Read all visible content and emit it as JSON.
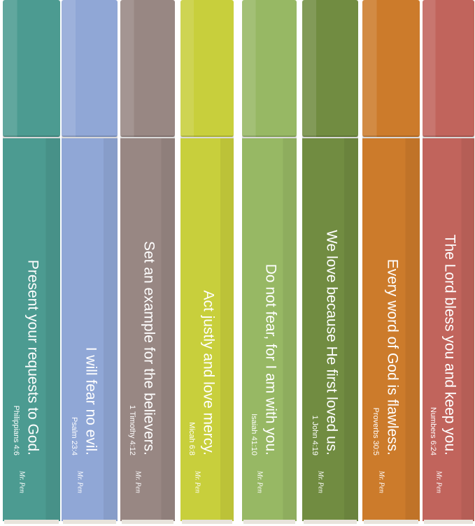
{
  "pens": [
    {
      "verse": "Present your requests to God.",
      "reference": "Philippians 4:6",
      "brand": "Mr. Pen"
    },
    {
      "verse": "I will fear no evil.",
      "reference": "Psalm 23:4",
      "brand": "Mr. Pen"
    },
    {
      "verse": "Set an example for the believers.",
      "reference": "1 Timothy 4:12",
      "brand": "Mr. Pen"
    },
    {
      "verse": "Act justly and love mercy.",
      "reference": "Micah 6:8",
      "brand": "Mr. Pen"
    },
    {
      "verse": "Do not fear, for I am with you.",
      "reference": "Isaiah 41:10",
      "brand": "Mr. Pen"
    },
    {
      "verse": "We love because He first loved us.",
      "reference": "1 John 4:19",
      "brand": "Mr. Pen"
    },
    {
      "verse": "Every word of God is flawless.",
      "reference": "Proverbs 30:5",
      "brand": "Mr. Pen"
    },
    {
      "verse": "The Lord bless you and keep you.",
      "reference": "Numbers 6:24",
      "brand": "Mr. Pen"
    }
  ]
}
